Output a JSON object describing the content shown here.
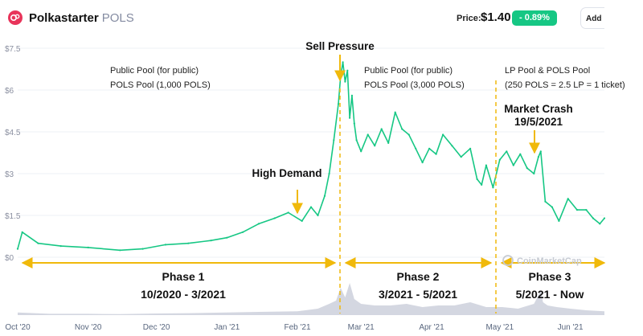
{
  "header": {
    "coin_name": "Polkastarter",
    "coin_symbol": "POLS",
    "price_label": "Price:",
    "price_value": "$1.40",
    "change_badge": "- 0.89%",
    "add_button_label": "Add"
  },
  "watermark": "CoinMarketCap",
  "colors": {
    "price_line": "#16c784",
    "volume": "#ccd0dc",
    "annotation": "#f0b90b",
    "change_badge": "#16c784"
  },
  "annotations": {
    "sell_pressure": "Sell Pressure",
    "high_demand": "High Demand",
    "market_crash": "Market Crash",
    "market_crash_date": "19/5/2021",
    "pool_1": [
      "Public Pool (for public)",
      "POLS Pool (1,000 POLS)"
    ],
    "pool_2": [
      "Public Pool (for public)",
      "POLS Pool (3,000 POLS)"
    ],
    "pool_3": [
      "LP Pool & POLS Pool",
      "(250 POLS = 2.5 LP = 1 ticket)"
    ],
    "phases": [
      {
        "name": "Phase 1",
        "range": "10/2020 - 3/2021"
      },
      {
        "name": "Phase 2",
        "range": "3/2021 - 5/2021"
      },
      {
        "name": "Phase 3",
        "range": "5/2021 - Now"
      }
    ]
  },
  "chart_data": {
    "type": "line",
    "title": "",
    "xlabel": "",
    "ylabel": "",
    "x_tick_labels": [
      "Oct '20",
      "Nov '20",
      "Dec '20",
      "Jan '21",
      "Feb '21",
      "Mar '21",
      "Apr '21",
      "May '21",
      "Jun '21"
    ],
    "y_tick_labels": [
      "$0",
      "$1.5",
      "$3",
      "$4.5",
      "$6",
      "$7.5"
    ],
    "ylim": [
      0,
      7.5
    ],
    "xlim": [
      "2020-10-01",
      "2021-06-16"
    ],
    "grid": "horizontal",
    "series": [
      {
        "x": [
          "2020-10-01",
          "2020-10-03",
          "2020-10-10",
          "2020-10-20",
          "2020-11-01",
          "2020-11-15",
          "2020-11-25",
          "2020-12-05",
          "2020-12-15",
          "2020-12-25",
          "2021-01-01",
          "2021-01-08",
          "2021-01-15",
          "2021-01-22",
          "2021-01-28",
          "2021-02-03",
          "2021-02-07",
          "2021-02-10",
          "2021-02-13",
          "2021-02-15",
          "2021-02-17",
          "2021-02-19",
          "2021-02-20",
          "2021-02-21",
          "2021-02-22",
          "2021-02-23",
          "2021-02-24",
          "2021-02-25",
          "2021-02-26",
          "2021-02-27",
          "2021-03-01",
          "2021-03-04",
          "2021-03-07",
          "2021-03-10",
          "2021-03-13",
          "2021-03-16",
          "2021-03-19",
          "2021-03-22",
          "2021-03-25",
          "2021-03-28",
          "2021-03-31",
          "2021-04-03",
          "2021-04-06",
          "2021-04-10",
          "2021-04-14",
          "2021-04-18",
          "2021-04-21",
          "2021-04-23",
          "2021-04-25",
          "2021-04-28",
          "2021-05-01",
          "2021-05-04",
          "2021-05-07",
          "2021-05-10",
          "2021-05-13",
          "2021-05-16",
          "2021-05-18",
          "2021-05-19",
          "2021-05-21",
          "2021-05-24",
          "2021-05-27",
          "2021-05-31",
          "2021-06-04",
          "2021-06-08",
          "2021-06-11",
          "2021-06-14",
          "2021-06-16"
        ],
        "values": [
          0.3,
          0.9,
          0.5,
          0.4,
          0.35,
          0.25,
          0.3,
          0.45,
          0.5,
          0.6,
          0.7,
          0.9,
          1.2,
          1.4,
          1.6,
          1.3,
          1.8,
          1.5,
          2.2,
          3.0,
          4.2,
          5.5,
          6.5,
          7.0,
          6.3,
          6.7,
          5.0,
          5.8,
          4.8,
          4.2,
          3.8,
          4.4,
          4.0,
          4.6,
          4.1,
          5.2,
          4.6,
          4.4,
          3.9,
          3.4,
          3.9,
          3.7,
          4.4,
          4.0,
          3.6,
          3.9,
          2.8,
          2.6,
          3.3,
          2.5,
          3.5,
          3.8,
          3.3,
          3.7,
          3.2,
          3.0,
          3.6,
          3.8,
          2.0,
          1.8,
          1.3,
          2.1,
          1.7,
          1.7,
          1.4,
          1.2,
          1.4
        ]
      }
    ],
    "volume": {
      "x": [
        "2020-10-01",
        "2020-10-15",
        "2020-11-01",
        "2020-11-15",
        "2020-12-01",
        "2020-12-15",
        "2021-01-01",
        "2021-01-15",
        "2021-02-01",
        "2021-02-10",
        "2021-02-15",
        "2021-02-18",
        "2021-02-20",
        "2021-02-22",
        "2021-02-24",
        "2021-02-26",
        "2021-03-01",
        "2021-03-07",
        "2021-03-14",
        "2021-03-21",
        "2021-03-28",
        "2021-04-04",
        "2021-04-11",
        "2021-04-18",
        "2021-04-25",
        "2021-05-02",
        "2021-05-09",
        "2021-05-16",
        "2021-05-19",
        "2021-05-20",
        "2021-05-22",
        "2021-05-26",
        "2021-06-01",
        "2021-06-08",
        "2021-06-16"
      ],
      "values": [
        0.08,
        0.04,
        0.04,
        0.03,
        0.05,
        0.06,
        0.08,
        0.1,
        0.12,
        0.2,
        0.35,
        0.45,
        0.85,
        0.55,
        1.0,
        0.5,
        0.35,
        0.3,
        0.3,
        0.35,
        0.25,
        0.3,
        0.3,
        0.4,
        0.25,
        0.25,
        0.2,
        0.35,
        0.75,
        0.4,
        0.3,
        0.25,
        0.2,
        0.15,
        0.12
      ]
    }
  }
}
